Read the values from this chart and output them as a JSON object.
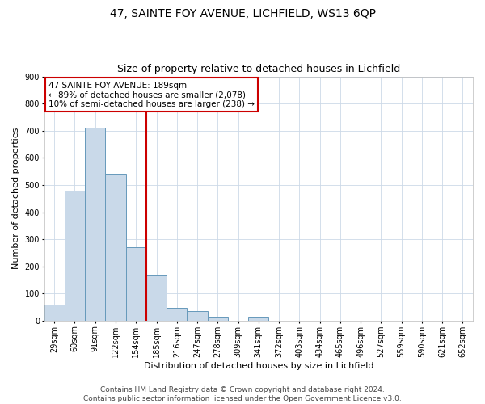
{
  "title": "47, SAINTE FOY AVENUE, LICHFIELD, WS13 6QP",
  "subtitle": "Size of property relative to detached houses in Lichfield",
  "xlabel": "Distribution of detached houses by size in Lichfield",
  "ylabel": "Number of detached properties",
  "bin_labels": [
    "29sqm",
    "60sqm",
    "91sqm",
    "122sqm",
    "154sqm",
    "185sqm",
    "216sqm",
    "247sqm",
    "278sqm",
    "309sqm",
    "341sqm",
    "372sqm",
    "403sqm",
    "434sqm",
    "465sqm",
    "496sqm",
    "527sqm",
    "559sqm",
    "590sqm",
    "621sqm",
    "652sqm"
  ],
  "bar_values": [
    60,
    480,
    710,
    540,
    270,
    170,
    48,
    35,
    15,
    0,
    15,
    0,
    0,
    0,
    0,
    0,
    0,
    0,
    0,
    0,
    0
  ],
  "bar_color": "#c9d9e9",
  "bar_edgecolor": "#6699bb",
  "vline_index": 5,
  "vline_color": "#cc0000",
  "ylim": [
    0,
    900
  ],
  "yticks": [
    0,
    100,
    200,
    300,
    400,
    500,
    600,
    700,
    800,
    900
  ],
  "annotation_title": "47 SAINTE FOY AVENUE: 189sqm",
  "annotation_line1": "← 89% of detached houses are smaller (2,078)",
  "annotation_line2": "10% of semi-detached houses are larger (238) →",
  "annotation_box_color": "#cc0000",
  "footer_line1": "Contains HM Land Registry data © Crown copyright and database right 2024.",
  "footer_line2": "Contains public sector information licensed under the Open Government Licence v3.0.",
  "title_fontsize": 10,
  "subtitle_fontsize": 9,
  "annotation_fontsize": 7.5,
  "axis_label_fontsize": 8,
  "tick_fontsize": 7,
  "footer_fontsize": 6.5
}
